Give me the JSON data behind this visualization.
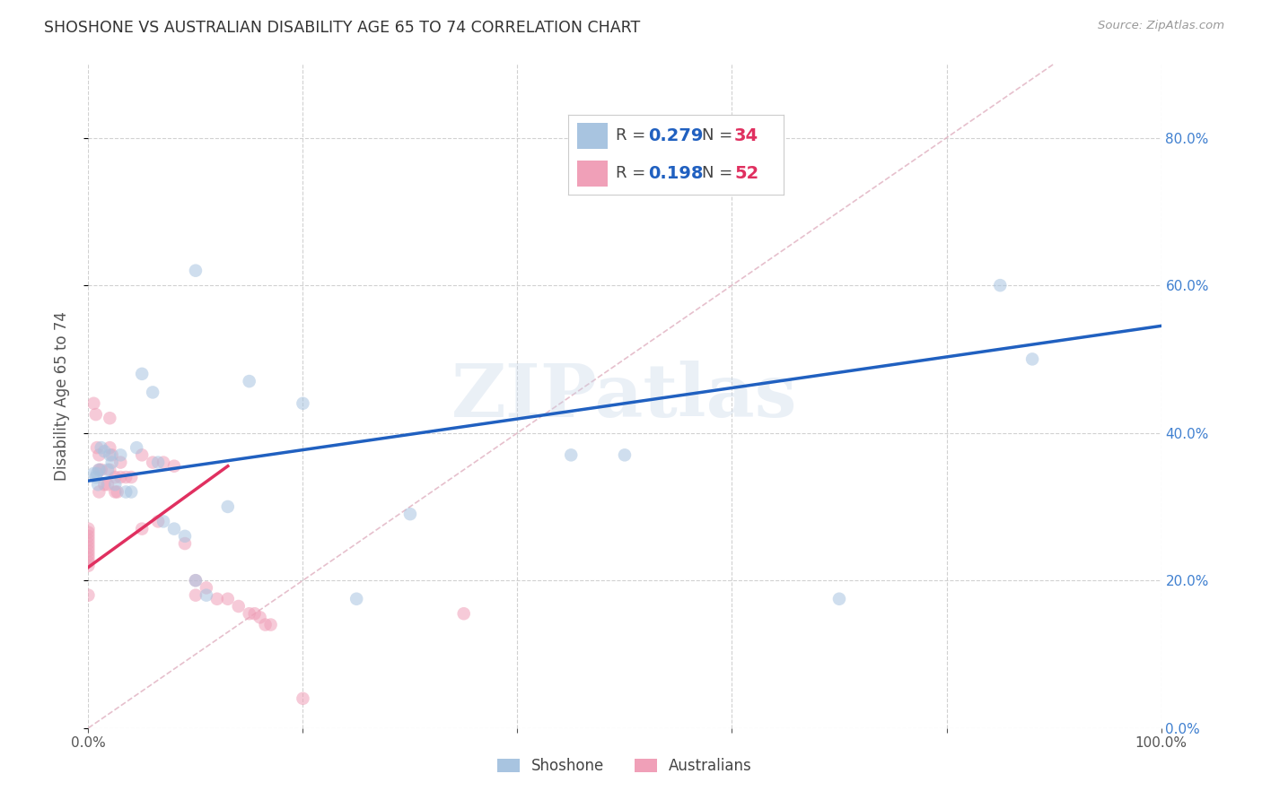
{
  "title": "SHOSHONE VS AUSTRALIAN DISABILITY AGE 65 TO 74 CORRELATION CHART",
  "source": "Source: ZipAtlas.com",
  "ylabel": "Disability Age 65 to 74",
  "xlim": [
    0.0,
    1.0
  ],
  "ylim": [
    0.0,
    0.9
  ],
  "yticks": [
    0.0,
    0.2,
    0.4,
    0.6,
    0.8
  ],
  "ytick_labels": [
    "0.0%",
    "20.0%",
    "40.0%",
    "60.0%",
    "80.0%"
  ],
  "xticks": [
    0.0,
    0.2,
    0.4,
    0.6,
    0.8,
    1.0
  ],
  "xtick_labels": [
    "0.0%",
    "",
    "",
    "",
    "",
    "100.0%"
  ],
  "shoshone_R": 0.279,
  "shoshone_N": 34,
  "australians_R": 0.198,
  "australians_N": 52,
  "shoshone_color": "#a8c4e0",
  "shoshone_line_color": "#2060c0",
  "australians_color": "#f0a0b8",
  "australians_line_color": "#e03060",
  "ref_line_color": "#e0b0c0",
  "background_color": "#ffffff",
  "grid_color": "#cccccc",
  "title_color": "#333333",
  "label_color": "#555555",
  "tick_color_right": "#4080d0",
  "tick_color_x": "#555555",
  "shoshone_x": [
    0.005,
    0.007,
    0.008,
    0.009,
    0.01,
    0.012,
    0.015,
    0.018,
    0.02,
    0.022,
    0.025,
    0.03,
    0.035,
    0.04,
    0.045,
    0.05,
    0.06,
    0.065,
    0.07,
    0.08,
    0.09,
    0.1,
    0.1,
    0.11,
    0.13,
    0.15,
    0.2,
    0.25,
    0.3,
    0.45,
    0.5,
    0.7,
    0.85,
    0.88
  ],
  "shoshone_y": [
    0.345,
    0.34,
    0.345,
    0.33,
    0.35,
    0.38,
    0.375,
    0.35,
    0.37,
    0.36,
    0.33,
    0.37,
    0.32,
    0.32,
    0.38,
    0.48,
    0.455,
    0.36,
    0.28,
    0.27,
    0.26,
    0.2,
    0.62,
    0.18,
    0.3,
    0.47,
    0.44,
    0.175,
    0.29,
    0.37,
    0.37,
    0.175,
    0.6,
    0.5
  ],
  "australians_x": [
    0.0,
    0.0,
    0.0,
    0.0,
    0.0,
    0.0,
    0.0,
    0.0,
    0.0,
    0.0,
    0.0,
    0.0,
    0.005,
    0.007,
    0.008,
    0.01,
    0.01,
    0.01,
    0.012,
    0.015,
    0.018,
    0.02,
    0.02,
    0.02,
    0.022,
    0.025,
    0.025,
    0.027,
    0.03,
    0.03,
    0.035,
    0.04,
    0.05,
    0.05,
    0.06,
    0.065,
    0.07,
    0.08,
    0.09,
    0.1,
    0.1,
    0.11,
    0.12,
    0.13,
    0.14,
    0.15,
    0.155,
    0.16,
    0.165,
    0.17,
    0.2,
    0.35
  ],
  "australians_y": [
    0.27,
    0.265,
    0.26,
    0.255,
    0.25,
    0.245,
    0.24,
    0.235,
    0.23,
    0.225,
    0.22,
    0.18,
    0.44,
    0.425,
    0.38,
    0.37,
    0.35,
    0.32,
    0.35,
    0.33,
    0.33,
    0.42,
    0.38,
    0.35,
    0.37,
    0.34,
    0.32,
    0.32,
    0.36,
    0.34,
    0.34,
    0.34,
    0.37,
    0.27,
    0.36,
    0.28,
    0.36,
    0.355,
    0.25,
    0.2,
    0.18,
    0.19,
    0.175,
    0.175,
    0.165,
    0.155,
    0.155,
    0.15,
    0.14,
    0.14,
    0.04,
    0.155
  ],
  "shoshone_trend_x": [
    0.0,
    1.0
  ],
  "shoshone_trend_y": [
    0.335,
    0.545
  ],
  "australians_trend_x": [
    0.0,
    0.13
  ],
  "australians_trend_y": [
    0.218,
    0.355
  ],
  "ref_line_x": [
    0.0,
    1.0
  ],
  "ref_line_y": [
    0.0,
    1.0
  ],
  "marker_size": 110,
  "marker_alpha": 0.55,
  "watermark_text": "ZIPatlas",
  "watermark_color": "#c5d5e8",
  "watermark_alpha": 0.35,
  "legend_R_color": "#2060c0",
  "legend_N_color": "#e03060"
}
